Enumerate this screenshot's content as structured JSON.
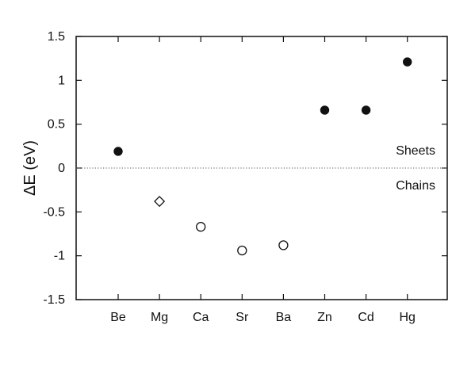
{
  "chart_data": {
    "type": "scatter",
    "title": "",
    "xlabel": "",
    "ylabel": "ΔE (eV)",
    "ylim": [
      -1.5,
      1.5
    ],
    "yticks": [
      -1.5,
      -1,
      -0.5,
      0,
      0.5,
      1,
      1.5
    ],
    "ytick_labels": [
      "-1.5",
      "-1",
      "-0.5",
      "0",
      "0.5",
      "1",
      "1.5"
    ],
    "categories": [
      "Be",
      "Mg",
      "Ca",
      "Sr",
      "Ba",
      "Zn",
      "Cd",
      "Hg"
    ],
    "points": [
      {
        "category": "Be",
        "value": 0.19,
        "marker": "filled-circle"
      },
      {
        "category": "Mg",
        "value": -0.38,
        "marker": "open-diamond"
      },
      {
        "category": "Ca",
        "value": -0.67,
        "marker": "open-circle"
      },
      {
        "category": "Sr",
        "value": -0.94,
        "marker": "open-circle"
      },
      {
        "category": "Ba",
        "value": -0.88,
        "marker": "open-circle"
      },
      {
        "category": "Zn",
        "value": 0.66,
        "marker": "filled-circle"
      },
      {
        "category": "Cd",
        "value": 0.66,
        "marker": "filled-circle"
      },
      {
        "category": "Hg",
        "value": 1.21,
        "marker": "filled-circle"
      }
    ],
    "reference_line": {
      "y": 0,
      "style": "dotted"
    },
    "annotations": [
      {
        "text": "Sheets",
        "position": "above-reference-right"
      },
      {
        "text": "Chains",
        "position": "below-reference-right"
      }
    ],
    "grid": false,
    "legend": "none"
  }
}
